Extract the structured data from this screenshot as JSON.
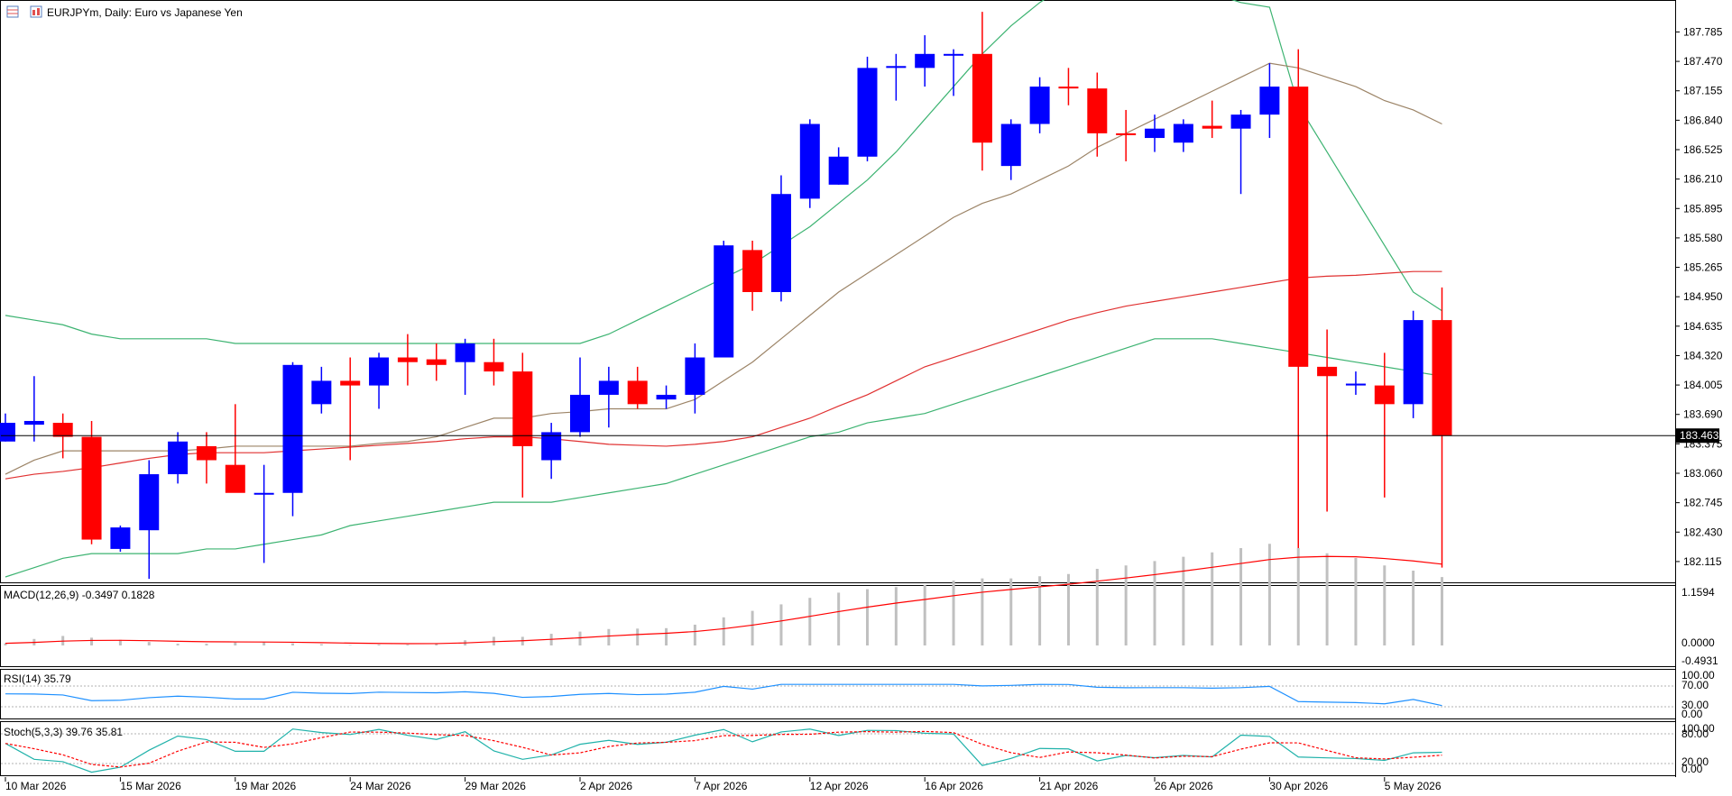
{
  "header": {
    "symbol_title": "EURJPYm, Daily:  Euro vs Japanese Yen",
    "icons": [
      "table-icon",
      "chart-icon"
    ]
  },
  "indicators": {
    "macd_label": "MACD(12,26,9) -0.3497 0.1828",
    "rsi_label": "RSI(14) 35.79",
    "stoch_label": "Stoch(5,3,3) 39.76 35.81"
  },
  "colors": {
    "bull": "#0000ff",
    "bear": "#ff0000",
    "ma_fast": "#9c8467",
    "ma_slow": "#e03030",
    "bollinger": "#3cb371",
    "macd_hist": "#c0c0c0",
    "macd_signal": "#ff0000",
    "rsi": "#1e90ff",
    "stoch_main": "#20b2aa",
    "stoch_signal": "#ff0000"
  },
  "chart_data": [
    {
      "type": "candlestick",
      "title": "EURJPYm, Daily:  Euro vs Japanese Yen",
      "ylim": [
        181.95,
        188.05
      ],
      "y_ticks": [
        "187.785",
        "187.470",
        "187.155",
        "186.840",
        "186.525",
        "186.210",
        "185.895",
        "185.580",
        "185.265",
        "184.950",
        "184.635",
        "184.320",
        "184.005",
        "183.690",
        "183.375",
        "183.060",
        "182.745",
        "182.430",
        "182.115"
      ],
      "x_tick_labels": [
        "10 Mar 2026",
        "15 Mar 2026",
        "19 Mar 2026",
        "24 Mar 2026",
        "29 Mar 2026",
        "2 Apr 2026",
        "7 Apr 2026",
        "12 Apr 2026",
        "16 Apr 2026",
        "21 Apr 2026",
        "26 Apr 2026",
        "30 Apr 2026",
        "5 May 2026"
      ],
      "current_price": "183.463",
      "candles": [
        {
          "o": 183.4,
          "h": 183.7,
          "l": 183.4,
          "c": 183.6
        },
        {
          "o": 183.58,
          "h": 184.1,
          "l": 183.4,
          "c": 183.62
        },
        {
          "o": 183.6,
          "h": 183.7,
          "l": 183.22,
          "c": 183.45
        },
        {
          "o": 183.45,
          "h": 183.62,
          "l": 182.3,
          "c": 182.35
        },
        {
          "o": 182.25,
          "h": 182.5,
          "l": 182.22,
          "c": 182.48
        },
        {
          "o": 182.45,
          "h": 183.2,
          "l": 181.93,
          "c": 183.05
        },
        {
          "o": 183.05,
          "h": 183.5,
          "l": 182.95,
          "c": 183.4
        },
        {
          "o": 183.35,
          "h": 183.5,
          "l": 182.95,
          "c": 183.2
        },
        {
          "o": 183.15,
          "h": 183.8,
          "l": 182.9,
          "c": 182.85
        },
        {
          "o": 182.85,
          "h": 183.15,
          "l": 182.1,
          "c": 182.85
        },
        {
          "o": 182.85,
          "h": 184.25,
          "l": 182.6,
          "c": 184.22
        },
        {
          "o": 183.8,
          "h": 184.2,
          "l": 183.7,
          "c": 184.05
        },
        {
          "o": 184.05,
          "h": 184.3,
          "l": 183.2,
          "c": 184.0
        },
        {
          "o": 184.0,
          "h": 184.35,
          "l": 183.75,
          "c": 184.3
        },
        {
          "o": 184.3,
          "h": 184.55,
          "l": 184.0,
          "c": 184.25
        },
        {
          "o": 184.28,
          "h": 184.45,
          "l": 184.05,
          "c": 184.22
        },
        {
          "o": 184.25,
          "h": 184.5,
          "l": 183.9,
          "c": 184.45
        },
        {
          "o": 184.25,
          "h": 184.5,
          "l": 184.0,
          "c": 184.15
        },
        {
          "o": 184.15,
          "h": 184.35,
          "l": 182.8,
          "c": 183.35
        },
        {
          "o": 183.2,
          "h": 183.6,
          "l": 183.0,
          "c": 183.5
        },
        {
          "o": 183.5,
          "h": 184.3,
          "l": 183.45,
          "c": 183.9
        },
        {
          "o": 183.9,
          "h": 184.2,
          "l": 183.55,
          "c": 184.05
        },
        {
          "o": 184.05,
          "h": 184.2,
          "l": 183.75,
          "c": 183.8
        },
        {
          "o": 183.85,
          "h": 184.0,
          "l": 183.75,
          "c": 183.9
        },
        {
          "o": 183.9,
          "h": 184.45,
          "l": 183.7,
          "c": 184.3
        },
        {
          "o": 184.3,
          "h": 185.55,
          "l": 184.3,
          "c": 185.5
        },
        {
          "o": 185.45,
          "h": 185.55,
          "l": 184.8,
          "c": 185.0
        },
        {
          "o": 185.0,
          "h": 186.25,
          "l": 184.9,
          "c": 186.05
        },
        {
          "o": 186.0,
          "h": 186.85,
          "l": 185.9,
          "c": 186.8
        },
        {
          "o": 186.15,
          "h": 186.55,
          "l": 186.15,
          "c": 186.45
        },
        {
          "o": 186.45,
          "h": 187.52,
          "l": 186.4,
          "c": 187.4
        },
        {
          "o": 187.4,
          "h": 187.55,
          "l": 187.05,
          "c": 187.42
        },
        {
          "o": 187.4,
          "h": 187.75,
          "l": 187.2,
          "c": 187.55
        },
        {
          "o": 187.55,
          "h": 187.6,
          "l": 187.1,
          "c": 187.55
        },
        {
          "o": 187.55,
          "h": 188.0,
          "l": 186.3,
          "c": 186.6
        },
        {
          "o": 186.35,
          "h": 186.85,
          "l": 186.2,
          "c": 186.8
        },
        {
          "o": 186.8,
          "h": 187.3,
          "l": 186.7,
          "c": 187.2
        },
        {
          "o": 187.2,
          "h": 187.4,
          "l": 187.0,
          "c": 187.18
        },
        {
          "o": 187.18,
          "h": 187.35,
          "l": 186.45,
          "c": 186.7
        },
        {
          "o": 186.7,
          "h": 186.95,
          "l": 186.4,
          "c": 186.68
        },
        {
          "o": 186.65,
          "h": 186.9,
          "l": 186.5,
          "c": 186.75
        },
        {
          "o": 186.6,
          "h": 186.85,
          "l": 186.5,
          "c": 186.8
        },
        {
          "o": 186.78,
          "h": 187.05,
          "l": 186.65,
          "c": 186.75
        },
        {
          "o": 186.75,
          "h": 186.95,
          "l": 186.05,
          "c": 186.9
        },
        {
          "o": 186.9,
          "h": 187.45,
          "l": 186.65,
          "c": 187.2
        },
        {
          "o": 187.2,
          "h": 187.6,
          "l": 182.25,
          "c": 184.2
        },
        {
          "o": 184.2,
          "h": 184.6,
          "l": 182.65,
          "c": 184.1
        },
        {
          "o": 184.0,
          "h": 184.15,
          "l": 183.9,
          "c": 184.02
        },
        {
          "o": 184.0,
          "h": 184.35,
          "l": 182.8,
          "c": 183.8
        },
        {
          "o": 183.8,
          "h": 184.8,
          "l": 183.65,
          "c": 184.7
        },
        {
          "o": 184.7,
          "h": 185.05,
          "l": 182.05,
          "c": 183.46
        }
      ],
      "ma_fast": [
        183.05,
        183.2,
        183.3,
        183.3,
        183.3,
        183.3,
        183.3,
        183.32,
        183.35,
        183.35,
        183.35,
        183.35,
        183.35,
        183.38,
        183.4,
        183.45,
        183.55,
        183.65,
        183.65,
        183.7,
        183.72,
        183.75,
        183.75,
        183.75,
        183.85,
        184.05,
        184.25,
        184.5,
        184.75,
        185.0,
        185.2,
        185.4,
        185.6,
        185.8,
        185.95,
        186.05,
        186.2,
        186.35,
        186.55,
        186.7,
        186.85,
        187.0,
        187.15,
        187.3,
        187.45,
        187.4,
        187.3,
        187.2,
        187.05,
        186.95,
        186.8
      ],
      "ma_slow": [
        183.0,
        183.05,
        183.08,
        183.12,
        183.17,
        183.22,
        183.26,
        183.28,
        183.28,
        183.28,
        183.3,
        183.32,
        183.34,
        183.36,
        183.38,
        183.4,
        183.43,
        183.45,
        183.45,
        183.43,
        183.4,
        183.37,
        183.36,
        183.35,
        183.37,
        183.4,
        183.45,
        183.55,
        183.65,
        183.78,
        183.9,
        184.05,
        184.2,
        184.3,
        184.4,
        184.5,
        184.6,
        184.7,
        184.78,
        184.85,
        184.9,
        184.95,
        185.0,
        185.05,
        185.1,
        185.15,
        185.17,
        185.18,
        185.2,
        185.22,
        185.22
      ],
      "bb_upper": [
        184.75,
        184.7,
        184.65,
        184.55,
        184.5,
        184.5,
        184.5,
        184.5,
        184.45,
        184.45,
        184.45,
        184.45,
        184.45,
        184.45,
        184.45,
        184.45,
        184.45,
        184.45,
        184.45,
        184.45,
        184.45,
        184.55,
        184.7,
        184.85,
        185.0,
        185.15,
        185.3,
        185.5,
        185.7,
        185.95,
        186.2,
        186.5,
        186.85,
        187.2,
        187.55,
        187.85,
        188.1,
        188.3,
        188.4,
        188.5,
        188.4,
        188.3,
        188.2,
        188.1,
        188.05,
        187.0,
        186.5,
        186.0,
        185.5,
        185.0,
        184.8
      ],
      "bb_lower": [
        181.95,
        182.05,
        182.15,
        182.2,
        182.2,
        182.2,
        182.2,
        182.25,
        182.25,
        182.3,
        182.35,
        182.4,
        182.5,
        182.55,
        182.6,
        182.65,
        182.7,
        182.75,
        182.75,
        182.75,
        182.8,
        182.85,
        182.9,
        182.95,
        183.05,
        183.15,
        183.25,
        183.35,
        183.45,
        183.5,
        183.6,
        183.65,
        183.7,
        183.8,
        183.9,
        184.0,
        184.1,
        184.2,
        184.3,
        184.4,
        184.5,
        184.5,
        184.5,
        184.45,
        184.4,
        184.35,
        184.3,
        184.25,
        184.2,
        184.15,
        184.1
      ]
    }
  ]
}
